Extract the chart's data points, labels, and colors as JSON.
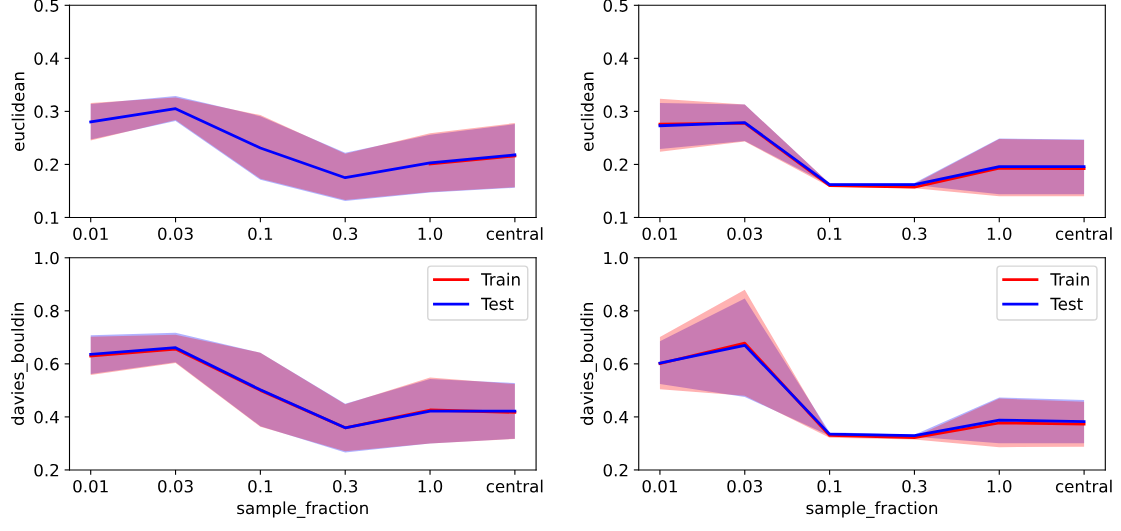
{
  "chart_data": [
    {
      "type": "line",
      "ylabel": "euclidean",
      "categories": [
        "0.01",
        "0.03",
        "0.1",
        "0.3",
        "1.0",
        "central"
      ],
      "ylim": [
        0.1,
        0.5
      ],
      "yticks": [
        0.1,
        0.2,
        0.3,
        0.4,
        0.5
      ],
      "grid": false,
      "legend": false,
      "series": [
        {
          "color": "#ff0000",
          "values": [
            null,
            null,
            null,
            null,
            0.201,
            0.216
          ],
          "lower": [
            0.245,
            0.284,
            0.173,
            0.133,
            0.148,
            0.157
          ],
          "upper": [
            0.316,
            0.326,
            0.293,
            0.22,
            0.259,
            0.278
          ]
        },
        {
          "color": "#0000ff",
          "values": [
            0.28,
            0.305,
            0.231,
            0.175,
            0.203,
            0.218
          ],
          "lower": [
            0.247,
            0.282,
            0.171,
            0.131,
            0.147,
            0.156
          ],
          "upper": [
            0.314,
            0.329,
            0.291,
            0.222,
            0.256,
            0.276
          ]
        }
      ]
    },
    {
      "type": "line",
      "ylabel": "euclidean",
      "categories": [
        "0.01",
        "0.03",
        "0.1",
        "0.3",
        "1.0",
        "central"
      ],
      "ylim": [
        0.1,
        0.5
      ],
      "yticks": [
        0.1,
        0.2,
        0.3,
        0.4,
        0.5
      ],
      "grid": false,
      "legend": false,
      "series": [
        {
          "color": "#ff0000",
          "values": [
            0.276,
            0.278,
            0.16,
            0.157,
            0.193,
            0.192
          ],
          "lower": [
            0.224,
            0.243,
            0.158,
            0.155,
            0.14,
            0.14
          ],
          "upper": [
            0.324,
            0.313,
            0.164,
            0.163,
            0.248,
            0.246
          ]
        },
        {
          "color": "#0000ff",
          "values": [
            0.273,
            0.279,
            0.162,
            0.162,
            0.196,
            0.196
          ],
          "lower": [
            0.229,
            0.244,
            0.161,
            0.161,
            0.144,
            0.144
          ],
          "upper": [
            0.316,
            0.313,
            0.164,
            0.165,
            0.249,
            0.247
          ]
        }
      ]
    },
    {
      "type": "line",
      "ylabel": "davies_bouldin",
      "xlabel": "sample_fraction",
      "categories": [
        "0.01",
        "0.03",
        "0.1",
        "0.3",
        "1.0",
        "central"
      ],
      "ylim": [
        0.2,
        1.0
      ],
      "yticks": [
        0.2,
        0.4,
        0.6,
        0.8,
        {
          "value": 1.0,
          "label": "1.0"
        }
      ],
      "grid": false,
      "legend": "top right",
      "series": [
        {
          "name": "Train",
          "color": "#ff0000",
          "values": [
            0.63,
            0.656,
            0.5,
            0.359,
            0.426,
            0.417
          ],
          "lower": [
            0.558,
            0.603,
            0.363,
            0.27,
            0.3,
            0.317
          ],
          "upper": [
            0.702,
            0.71,
            0.642,
            0.448,
            0.549,
            0.524
          ]
        },
        {
          "name": "Test",
          "color": "#0000ff",
          "values": [
            0.636,
            0.661,
            0.502,
            0.359,
            0.422,
            0.422
          ],
          "lower": [
            0.562,
            0.606,
            0.365,
            0.266,
            0.3,
            0.318
          ],
          "upper": [
            0.708,
            0.717,
            0.642,
            0.45,
            0.543,
            0.528
          ]
        }
      ]
    },
    {
      "type": "line",
      "ylabel": "davies_bouldin",
      "xlabel": "sample_fraction",
      "categories": [
        "0.01",
        "0.03",
        "0.1",
        "0.3",
        "1.0",
        "central"
      ],
      "ylim": [
        0.2,
        1.0
      ],
      "yticks": [
        0.2,
        0.4,
        0.6,
        0.8,
        {
          "value": 1.0,
          "label": "1.0"
        }
      ],
      "grid": false,
      "legend": "top right",
      "series": [
        {
          "name": "Train",
          "color": "#ff0000",
          "values": [
            0.601,
            0.678,
            0.33,
            0.322,
            0.377,
            0.373
          ],
          "lower": [
            0.504,
            0.48,
            0.321,
            0.315,
            0.286,
            0.287
          ],
          "upper": [
            0.701,
            0.879,
            0.334,
            0.325,
            0.469,
            0.457
          ]
        },
        {
          "name": "Test",
          "color": "#0000ff",
          "values": [
            0.603,
            0.67,
            0.335,
            0.329,
            0.388,
            0.382
          ],
          "lower": [
            0.524,
            0.475,
            0.329,
            0.325,
            0.301,
            0.301
          ],
          "upper": [
            0.685,
            0.846,
            0.342,
            0.333,
            0.473,
            0.464
          ]
        }
      ]
    }
  ]
}
